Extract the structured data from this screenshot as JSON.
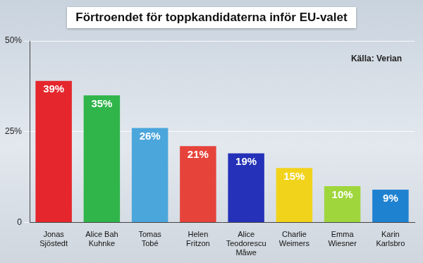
{
  "chart_data": {
    "type": "bar",
    "title": "Förtroendet för toppkandidaterna inför EU-valet",
    "source": "Källa: Verian",
    "categories": [
      "Jonas\nSjöstedt",
      "Alice Bah\nKuhnke",
      "Tomas\nTobé",
      "Helen\nFritzon",
      "Alice\nTeodorescu\nMåwe",
      "Charlie\nWeimers",
      "Emma\nWiesner",
      "Karin\nKarlsbro"
    ],
    "values": [
      39,
      35,
      26,
      21,
      19,
      15,
      10,
      9
    ],
    "value_labels": [
      "39%",
      "35%",
      "26%",
      "21%",
      "19%",
      "15%",
      "10%",
      "9%"
    ],
    "colors": [
      "#e5262d",
      "#2fb54a",
      "#4ba6dc",
      "#e6433b",
      "#2431b8",
      "#f2d31c",
      "#9fd63c",
      "#1f82d0"
    ],
    "ylim": [
      0,
      50
    ],
    "yticks": [
      0,
      {
        "value": 25,
        "label": "25%"
      },
      {
        "value": 50,
        "label": "50%"
      }
    ],
    "grid": true,
    "data_labels": true
  }
}
